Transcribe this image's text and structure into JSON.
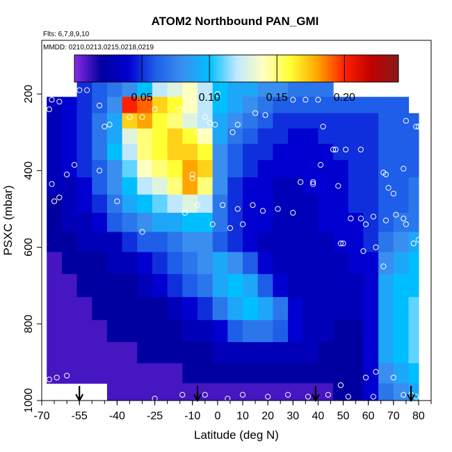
{
  "chart_data": {
    "type": "heatmap",
    "title": "ATOM2 Northbound PAN_GMI",
    "info_lines": [
      "Flts: 6,7,8,9,10",
      "MMDD: 0210,0213,0215,0218,0219"
    ],
    "xlabel": "Latitude (deg N)",
    "ylabel": "PSXC (mbar)",
    "xlim": [
      -70,
      85
    ],
    "ylim": [
      1000,
      60
    ],
    "y_reversed": true,
    "x_ticks": [
      -70,
      -55,
      -40,
      -25,
      -10,
      0,
      10,
      20,
      30,
      40,
      50,
      60,
      70,
      80
    ],
    "x_tick_labels": [
      "-70",
      "-55",
      "-40",
      "-25",
      "-10",
      "0",
      "10",
      "20",
      "30",
      "40",
      "50",
      "60",
      "70",
      "80"
    ],
    "x_minor_step": 5,
    "y_ticks": [
      200,
      400,
      600,
      800,
      1000
    ],
    "y_tick_labels": [
      "200",
      "400",
      "600",
      "800",
      "1000"
    ],
    "colorbar": {
      "min": 0.0,
      "max": 0.24,
      "ticks": [
        0.05,
        0.1,
        0.15,
        0.2
      ],
      "tick_labels": [
        "0.05",
        "0.10",
        "0.15",
        "0.20"
      ],
      "colors": [
        "#8a2be2",
        "#0000a0",
        "#0000d0",
        "#1e5ee8",
        "#3a8ef0",
        "#00bfff",
        "#bfe8ff",
        "#ffffc0",
        "#ffff33",
        "#ffa500",
        "#ff2000",
        "#c00000",
        "#8b1a1a"
      ]
    },
    "arrow_latitudes": [
      -55,
      -8,
      39,
      77
    ],
    "pressure_levels": [
      185,
      230,
      270,
      310,
      350,
      395,
      440,
      485,
      535,
      585,
      640,
      700,
      760,
      820,
      875,
      930,
      980
    ],
    "latitude_edges": [
      -68,
      -62,
      -56,
      -50,
      -44,
      -38,
      -32,
      -26,
      -20,
      -14,
      -8,
      -2,
      4,
      10,
      16,
      22,
      28,
      34,
      40,
      46,
      52,
      58,
      64,
      70,
      76,
      80
    ],
    "values": [
      [
        null,
        null,
        0.05,
        0.06,
        0.07,
        0.08,
        0.1,
        0.12,
        0.13,
        0.14,
        0.12,
        0.1,
        0.09,
        0.09,
        0.08,
        0.08,
        0.07,
        0.07,
        0.07,
        null,
        null,
        null,
        null,
        null,
        null
      ],
      [
        0.03,
        0.04,
        0.05,
        0.06,
        0.08,
        0.2,
        0.19,
        0.17,
        0.16,
        0.14,
        0.12,
        0.1,
        0.09,
        0.08,
        0.07,
        0.06,
        0.06,
        0.06,
        0.06,
        0.06,
        0.06,
        0.06,
        0.06,
        0.06,
        null
      ],
      [
        0.03,
        0.04,
        0.05,
        0.07,
        0.09,
        0.17,
        0.18,
        0.16,
        0.15,
        0.13,
        0.12,
        0.09,
        0.08,
        0.07,
        0.06,
        0.05,
        0.05,
        0.05,
        0.05,
        0.05,
        0.05,
        0.05,
        0.06,
        0.06,
        0.06
      ],
      [
        0.03,
        0.04,
        0.05,
        0.07,
        0.09,
        0.13,
        0.15,
        0.16,
        0.17,
        0.16,
        0.14,
        0.09,
        0.07,
        0.06,
        0.05,
        0.05,
        0.04,
        0.04,
        0.05,
        0.05,
        0.05,
        0.05,
        0.06,
        0.06,
        0.06
      ],
      [
        0.03,
        0.04,
        0.05,
        0.07,
        0.1,
        0.12,
        0.15,
        0.16,
        0.17,
        0.17,
        0.16,
        0.08,
        0.06,
        0.05,
        0.05,
        0.04,
        0.04,
        0.04,
        0.04,
        0.05,
        0.05,
        0.05,
        0.06,
        0.06,
        0.06
      ],
      [
        0.03,
        0.04,
        0.05,
        0.06,
        0.08,
        0.11,
        0.14,
        0.15,
        0.16,
        0.18,
        0.17,
        0.08,
        0.06,
        0.05,
        0.04,
        0.04,
        0.04,
        0.04,
        0.04,
        0.04,
        0.05,
        0.05,
        0.06,
        0.06,
        0.06
      ],
      [
        0.03,
        0.03,
        0.04,
        0.06,
        0.08,
        0.1,
        0.12,
        0.13,
        0.15,
        0.18,
        0.15,
        0.08,
        0.05,
        0.04,
        0.04,
        0.03,
        0.03,
        0.04,
        0.04,
        0.04,
        0.05,
        0.05,
        0.06,
        0.06,
        0.07
      ],
      [
        0.02,
        0.03,
        0.04,
        0.05,
        0.07,
        0.09,
        0.1,
        0.11,
        0.12,
        0.13,
        0.12,
        0.07,
        0.05,
        0.04,
        0.04,
        0.03,
        0.03,
        0.03,
        0.04,
        0.04,
        0.05,
        0.05,
        0.06,
        0.06,
        0.07
      ],
      [
        0.02,
        0.03,
        0.03,
        0.04,
        0.06,
        0.07,
        0.08,
        0.09,
        0.09,
        0.1,
        0.1,
        0.07,
        0.05,
        0.04,
        0.04,
        0.03,
        0.03,
        0.03,
        0.04,
        0.04,
        0.04,
        0.05,
        0.06,
        0.07,
        0.07
      ],
      [
        0.02,
        0.02,
        0.03,
        0.03,
        0.03,
        0.05,
        0.06,
        0.06,
        0.07,
        0.08,
        0.08,
        0.06,
        0.05,
        0.04,
        0.03,
        0.03,
        0.03,
        0.03,
        0.03,
        0.04,
        0.04,
        0.05,
        0.07,
        0.08,
        0.09
      ],
      [
        0.01,
        0.02,
        0.02,
        0.02,
        0.03,
        0.03,
        0.04,
        0.05,
        0.06,
        0.07,
        0.08,
        0.09,
        0.08,
        0.06,
        0.04,
        0.03,
        0.03,
        0.03,
        0.03,
        0.03,
        0.04,
        0.04,
        0.08,
        0.09,
        0.1
      ],
      [
        0.01,
        0.01,
        0.02,
        0.02,
        0.02,
        0.02,
        0.03,
        0.04,
        0.05,
        0.06,
        0.07,
        0.09,
        0.1,
        0.09,
        0.06,
        0.04,
        0.03,
        0.03,
        0.03,
        0.03,
        0.03,
        0.04,
        0.09,
        0.1,
        0.1
      ],
      [
        0.01,
        0.01,
        0.01,
        0.02,
        0.02,
        0.02,
        0.02,
        0.02,
        0.03,
        0.04,
        0.05,
        0.07,
        0.09,
        0.1,
        0.09,
        0.07,
        0.04,
        0.03,
        0.03,
        0.03,
        0.03,
        0.04,
        0.09,
        0.1,
        0.11
      ],
      [
        0.01,
        0.01,
        0.01,
        0.01,
        0.02,
        0.02,
        0.02,
        0.02,
        0.02,
        0.03,
        0.03,
        0.04,
        0.06,
        0.07,
        0.07,
        0.06,
        0.04,
        0.03,
        0.03,
        0.02,
        0.02,
        0.04,
        0.09,
        0.1,
        0.11
      ],
      [
        0.01,
        0.01,
        0.01,
        0.01,
        0.01,
        0.01,
        0.02,
        0.02,
        0.02,
        0.02,
        0.02,
        0.03,
        0.03,
        0.03,
        0.03,
        0.03,
        0.03,
        0.03,
        0.02,
        0.02,
        0.02,
        0.04,
        0.09,
        0.1,
        0.11
      ],
      [
        0.01,
        0.01,
        0.01,
        0.01,
        0.01,
        0.01,
        0.01,
        0.01,
        0.01,
        0.02,
        0.02,
        0.02,
        0.02,
        0.02,
        0.02,
        0.02,
        0.02,
        0.02,
        0.02,
        0.02,
        0.02,
        0.04,
        0.08,
        0.09,
        0.1
      ],
      [
        null,
        null,
        null,
        null,
        0.01,
        0.01,
        0.01,
        0.01,
        0.01,
        0.01,
        0.01,
        0.01,
        0.01,
        0.01,
        0.01,
        0.01,
        0.01,
        0.01,
        0.01,
        0.02,
        0.02,
        0.04,
        0.07,
        0.08,
        0.09
      ]
    ],
    "points": [
      [
        -55,
        190
      ],
      [
        -52,
        190
      ],
      [
        -47,
        230
      ],
      [
        -63,
        220
      ],
      [
        -66,
        215
      ],
      [
        -67,
        240
      ],
      [
        -43,
        280
      ],
      [
        -45,
        285
      ],
      [
        -35,
        260
      ],
      [
        -30,
        260
      ],
      [
        -25,
        240
      ],
      [
        -15,
        240
      ],
      [
        -10,
        215
      ],
      [
        0,
        200
      ],
      [
        -3,
        275
      ],
      [
        8,
        280
      ],
      [
        15,
        250
      ],
      [
        19,
        255
      ],
      [
        30,
        215
      ],
      [
        35,
        215
      ],
      [
        40,
        215
      ],
      [
        -60,
        410
      ],
      [
        -57,
        385
      ],
      [
        -66,
        435
      ],
      [
        -65,
        480
      ],
      [
        -63,
        470
      ],
      [
        -47,
        400
      ],
      [
        -40,
        480
      ],
      [
        -30,
        560
      ],
      [
        -13,
        510
      ],
      [
        -8,
        490
      ],
      [
        -2,
        540
      ],
      [
        2,
        490
      ],
      [
        5,
        550
      ],
      [
        8,
        500
      ],
      [
        10,
        540
      ],
      [
        14,
        490
      ],
      [
        18,
        505
      ],
      [
        24,
        500
      ],
      [
        30,
        510
      ],
      [
        33,
        430
      ],
      [
        38,
        430
      ],
      [
        41,
        385
      ],
      [
        -10,
        410
      ],
      [
        -10,
        420
      ],
      [
        -8,
        300
      ],
      [
        -5,
        260
      ],
      [
        -1,
        280
      ],
      [
        6,
        300
      ],
      [
        42,
        285
      ],
      [
        46,
        345
      ],
      [
        47,
        345
      ],
      [
        51,
        345
      ],
      [
        57,
        345
      ],
      [
        66,
        405
      ],
      [
        67,
        410
      ],
      [
        68,
        445
      ],
      [
        70,
        460
      ],
      [
        74,
        395
      ],
      [
        75,
        270
      ],
      [
        79,
        285
      ],
      [
        80,
        285
      ],
      [
        38,
        435
      ],
      [
        48,
        440
      ],
      [
        53,
        525
      ],
      [
        57,
        525
      ],
      [
        59,
        540
      ],
      [
        62,
        520
      ],
      [
        67,
        530
      ],
      [
        71,
        515
      ],
      [
        74,
        525
      ],
      [
        75,
        540
      ],
      [
        78,
        590
      ],
      [
        49,
        590
      ],
      [
        50,
        590
      ],
      [
        58,
        610
      ],
      [
        63,
        600
      ],
      [
        66,
        650
      ],
      [
        80,
        580
      ],
      [
        -64,
        940
      ],
      [
        -67,
        945
      ],
      [
        -60,
        935
      ],
      [
        -47,
        995
      ],
      [
        -25,
        995
      ],
      [
        -14,
        985
      ],
      [
        -5,
        985
      ],
      [
        4,
        995
      ],
      [
        10,
        985
      ],
      [
        20,
        990
      ],
      [
        28,
        985
      ],
      [
        36,
        990
      ],
      [
        44,
        985
      ],
      [
        49,
        960
      ],
      [
        52,
        990
      ],
      [
        59,
        940
      ],
      [
        63,
        925
      ],
      [
        70,
        940
      ],
      [
        74,
        985
      ],
      [
        77,
        985
      ],
      [
        79,
        990
      ],
      [
        62,
        990
      ]
    ]
  }
}
